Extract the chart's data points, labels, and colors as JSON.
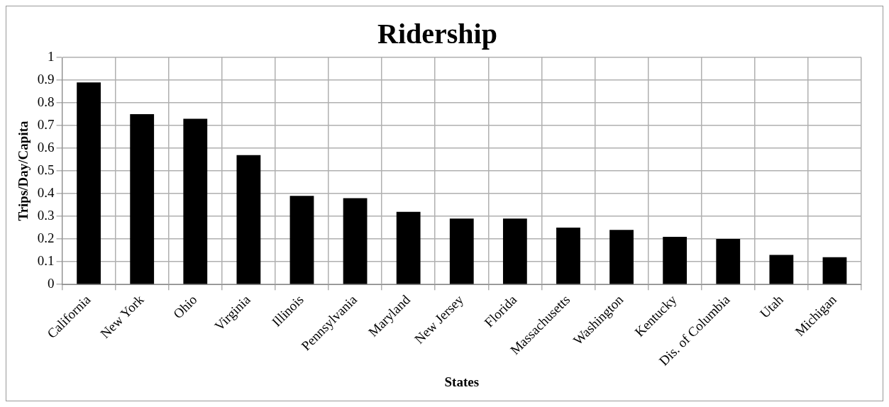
{
  "chart_data": {
    "type": "bar",
    "title": "Ridership",
    "xlabel": "States",
    "ylabel": "Trips/Day/Capita",
    "categories": [
      "California",
      "New York",
      "Ohio",
      "Virginia",
      "Illinois",
      "Pennsylvania",
      "Maryland",
      "New Jersey",
      "Florida",
      "Massachusetts",
      "Washington",
      "Kentucky",
      "Dis. of Columbia",
      "Utah",
      "Michigan"
    ],
    "values": [
      0.89,
      0.75,
      0.73,
      0.57,
      0.39,
      0.38,
      0.32,
      0.29,
      0.29,
      0.25,
      0.24,
      0.21,
      0.2,
      0.13,
      0.12
    ],
    "color": "#000000",
    "ylim": [
      0,
      1
    ],
    "yticks": [
      0,
      0.1,
      0.2,
      0.3,
      0.4,
      0.5,
      0.6,
      0.7,
      0.8,
      0.9,
      1
    ],
    "grid": true,
    "legend": false
  }
}
